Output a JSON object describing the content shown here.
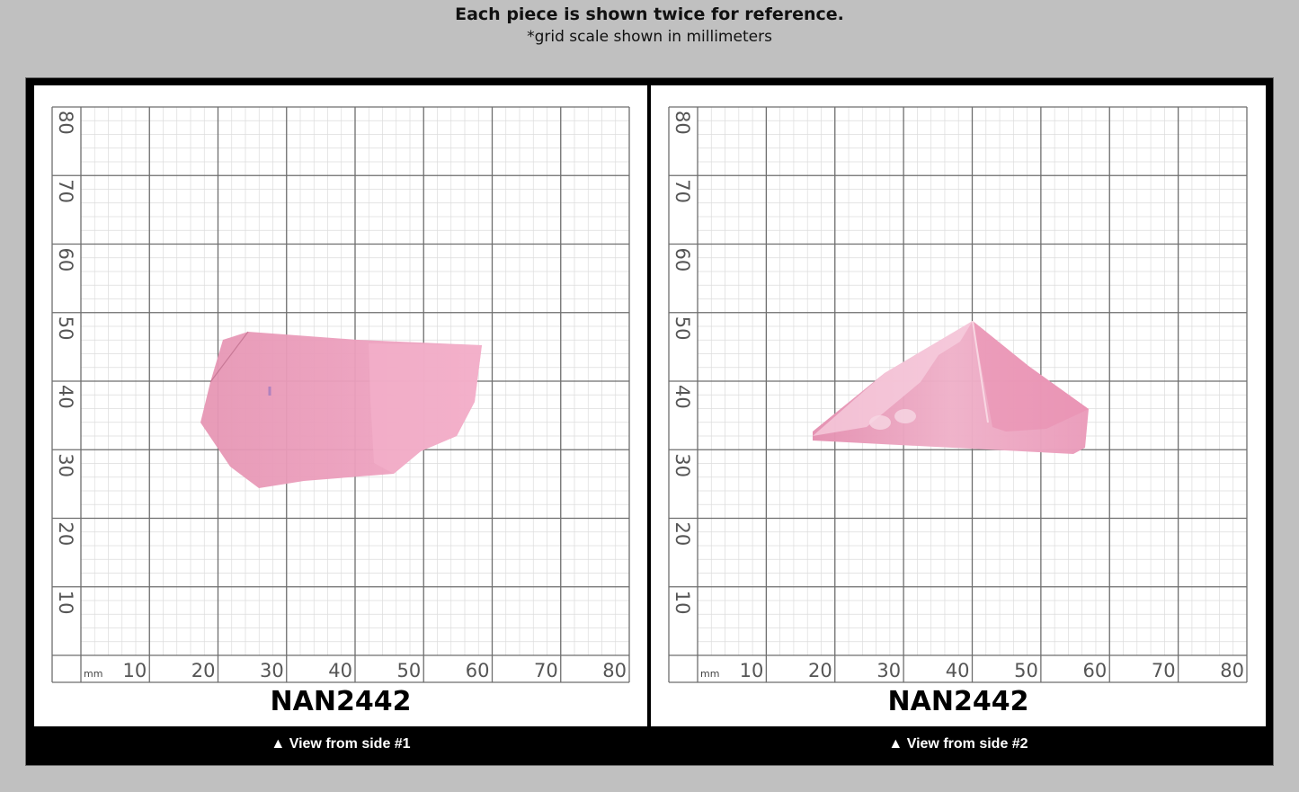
{
  "header": {
    "title": "Each piece is shown twice for reference.",
    "subtitle": "*grid scale shown in millimeters"
  },
  "grid": {
    "unit_label": "mm",
    "x_ticks": [
      "10",
      "20",
      "30",
      "40",
      "50",
      "60",
      "70",
      "80"
    ],
    "y_ticks": [
      "80",
      "70",
      "60",
      "50",
      "40",
      "30",
      "20",
      "10"
    ]
  },
  "panels": [
    {
      "code": "NAN2442",
      "caption": "▲ View from side #1"
    },
    {
      "code": "NAN2442",
      "caption": "▲ View from side #2"
    }
  ],
  "colors": {
    "background": "#c0c0c0",
    "frame": "#000000",
    "stone_pink": "#e99bb8"
  }
}
